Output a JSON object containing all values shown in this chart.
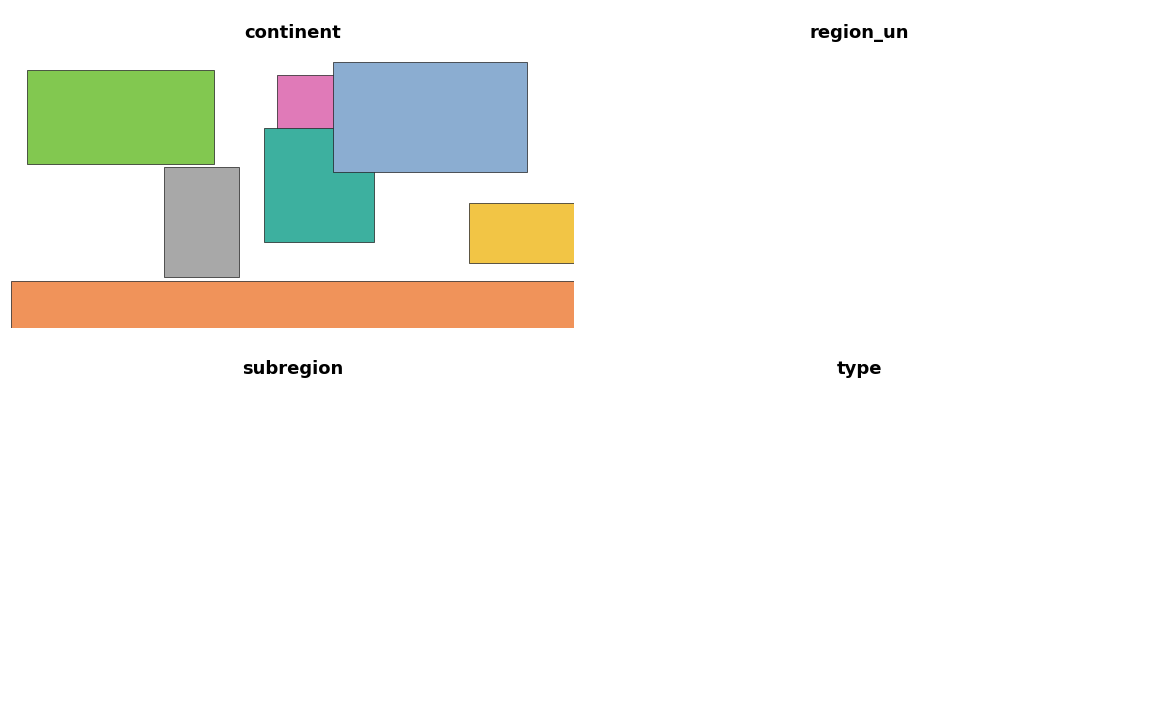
{
  "titles": [
    "continent",
    "region_un",
    "subregion",
    "type"
  ],
  "continent_color_map": {
    "Africa": "#3db09f",
    "Antarctica": "#f0935a",
    "Asia": "#8badd1",
    "Europe": "#e07ab8",
    "North America": "#82c850",
    "Oceania": "#f2c545",
    "South America": "#a8a8a8",
    "Seven seas (open ocean)": "#82c850"
  },
  "region_un_color_map": {
    "Africa": "#3db09f",
    "Americas": "#e8795a",
    "Antarctica": "#8badd1",
    "Asia": "#e07ab8",
    "Europe": "#505050",
    "Oceania": "#f2c545",
    "Seven seas (open ocean)": "#a8a8a8"
  },
  "subregion_color_map": {
    "Australia and New Zealand": "#e8f08a",
    "Caribbean": "#f08060",
    "Central America": "#e87858",
    "Central Asia": "#80c0d8",
    "Eastern Africa": "#d0904a",
    "Eastern Asia": "#88b880",
    "Eastern Europe": "#c8a0d8",
    "Melanesia": "#d0e070",
    "Micronesia": "#a0c8d0",
    "Middle Africa": "#b07030",
    "Northern Africa": "#c8c878",
    "Northern America": "#e8d060",
    "Northern Europe": "#80b8e0",
    "Polynesia": "#b0d8a0",
    "Seven seas (open ocean)": "#c0c0c0",
    "South America": "#a0a0cc",
    "South-Eastern Asia": "#e09860",
    "Southern Africa": "#d8b060",
    "Southern Asia": "#e87858",
    "Southern Europe": "#d0b080",
    "Western Africa": "#b08040",
    "Western Asia": "#b8c880",
    "Western Europe": "#80b0d8",
    "Antarctica": "#78c8b8"
  },
  "type_color_map": {
    "Country": "#82c850",
    "Sovereign country": "#82c850",
    "Dependency": "#3db09f",
    "Disputed": "#3db09f",
    "Indeterminate": "#e07ab8",
    "Lease": "#e07ab8",
    "Antarctica": "#f0935a"
  },
  "background_color": "#ffffff",
  "edge_color": "#1a1a1a",
  "edge_linewidth": 0.3,
  "title_fontsize": 13,
  "title_fontweight": "bold",
  "figsize": [
    11.52,
    7.11
  ],
  "dpi": 100
}
